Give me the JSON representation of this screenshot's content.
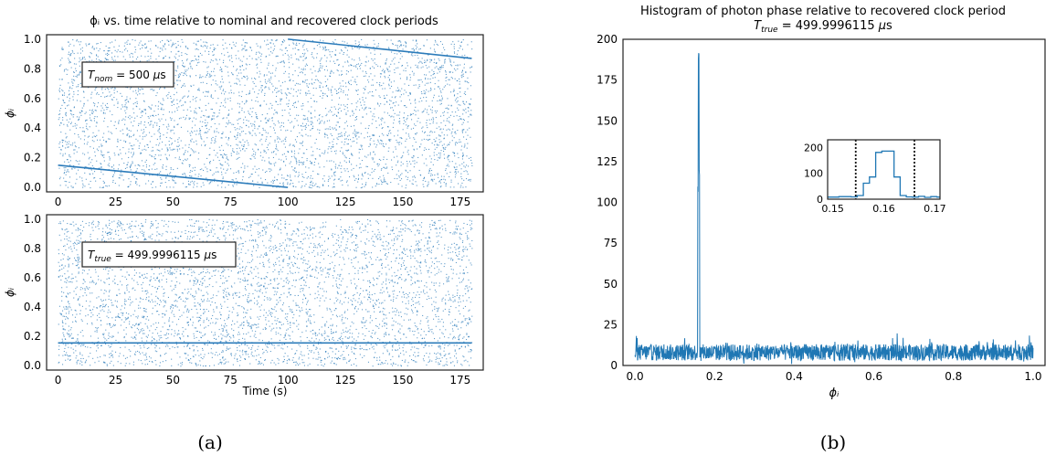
{
  "captions": [
    "(a)",
    "(b)"
  ],
  "chart_data": [
    {
      "type": "scatter",
      "title": "ϕᵢ vs. time relative to nominal and recovered clock periods",
      "ylabel": "ϕᵢ",
      "xlabel": "",
      "xlim": [
        -5,
        185
      ],
      "ylim": [
        -0.03,
        1.03
      ],
      "xticks": [
        0,
        25,
        50,
        75,
        100,
        125,
        150,
        175
      ],
      "yticks": [
        0.0,
        0.2,
        0.4,
        0.6,
        0.8,
        1.0
      ],
      "annotation": "T_nom = 500 μs",
      "color": "#2b7bba",
      "grid": false,
      "uniform_background": {
        "x_range": [
          0,
          180
        ],
        "y_range": [
          0,
          1
        ]
      },
      "series": [
        {
          "x": [
            0,
            100
          ],
          "y": [
            0.15,
            0.0
          ]
        },
        {
          "x": [
            100,
            180
          ],
          "y": [
            1.0,
            0.87
          ]
        }
      ]
    },
    {
      "type": "scatter",
      "title": "",
      "ylabel": "ϕᵢ",
      "xlabel": "Time (s)",
      "xlim": [
        -5,
        185
      ],
      "ylim": [
        -0.03,
        1.03
      ],
      "xticks": [
        0,
        25,
        50,
        75,
        100,
        125,
        150,
        175
      ],
      "yticks": [
        0.0,
        0.2,
        0.4,
        0.6,
        0.8,
        1.0
      ],
      "annotation": "T_true = 499.9996115 μs",
      "color": "#2b7bba",
      "grid": false,
      "uniform_background": {
        "x_range": [
          0,
          180
        ],
        "y_range": [
          0,
          1
        ]
      },
      "series": [
        {
          "x": [
            0,
            180
          ],
          "y": [
            0.155,
            0.155
          ]
        }
      ]
    },
    {
      "type": "line",
      "title": "Histogram of photon phase relative to recovered clock period",
      "subtitle": "T_true = 499.9996115 μs",
      "xlabel": "ϕᵢ",
      "ylabel": "",
      "xlim": [
        -0.03,
        1.03
      ],
      "ylim": [
        0,
        200
      ],
      "xticks": [
        0.0,
        0.2,
        0.4,
        0.6,
        0.8,
        1.0
      ],
      "yticks": [
        0,
        25,
        50,
        75,
        100,
        125,
        150,
        175,
        200
      ],
      "color": "#1f77b4",
      "grid": false,
      "baseline_level": 8,
      "peak": {
        "x": 0.16,
        "y": 192
      },
      "inset": {
        "type": "step",
        "xlim": [
          0.149,
          0.171
        ],
        "ylim": [
          0,
          230
        ],
        "xticks": [
          0.15,
          0.16,
          0.17
        ],
        "yticks": [
          0,
          100,
          200
        ],
        "vlines": [
          0.1545,
          0.166
        ],
        "x": [
          0.149,
          0.1512,
          0.1536,
          0.1548,
          0.156,
          0.1572,
          0.1584,
          0.1596,
          0.1608,
          0.162,
          0.1632,
          0.1644,
          0.1656,
          0.1668,
          0.168,
          0.1692,
          0.1704,
          0.171
        ],
        "y": [
          8,
          10,
          9,
          14,
          62,
          86,
          181,
          186,
          186,
          86,
          14,
          9,
          8,
          11,
          7,
          10,
          8,
          8
        ]
      }
    }
  ]
}
